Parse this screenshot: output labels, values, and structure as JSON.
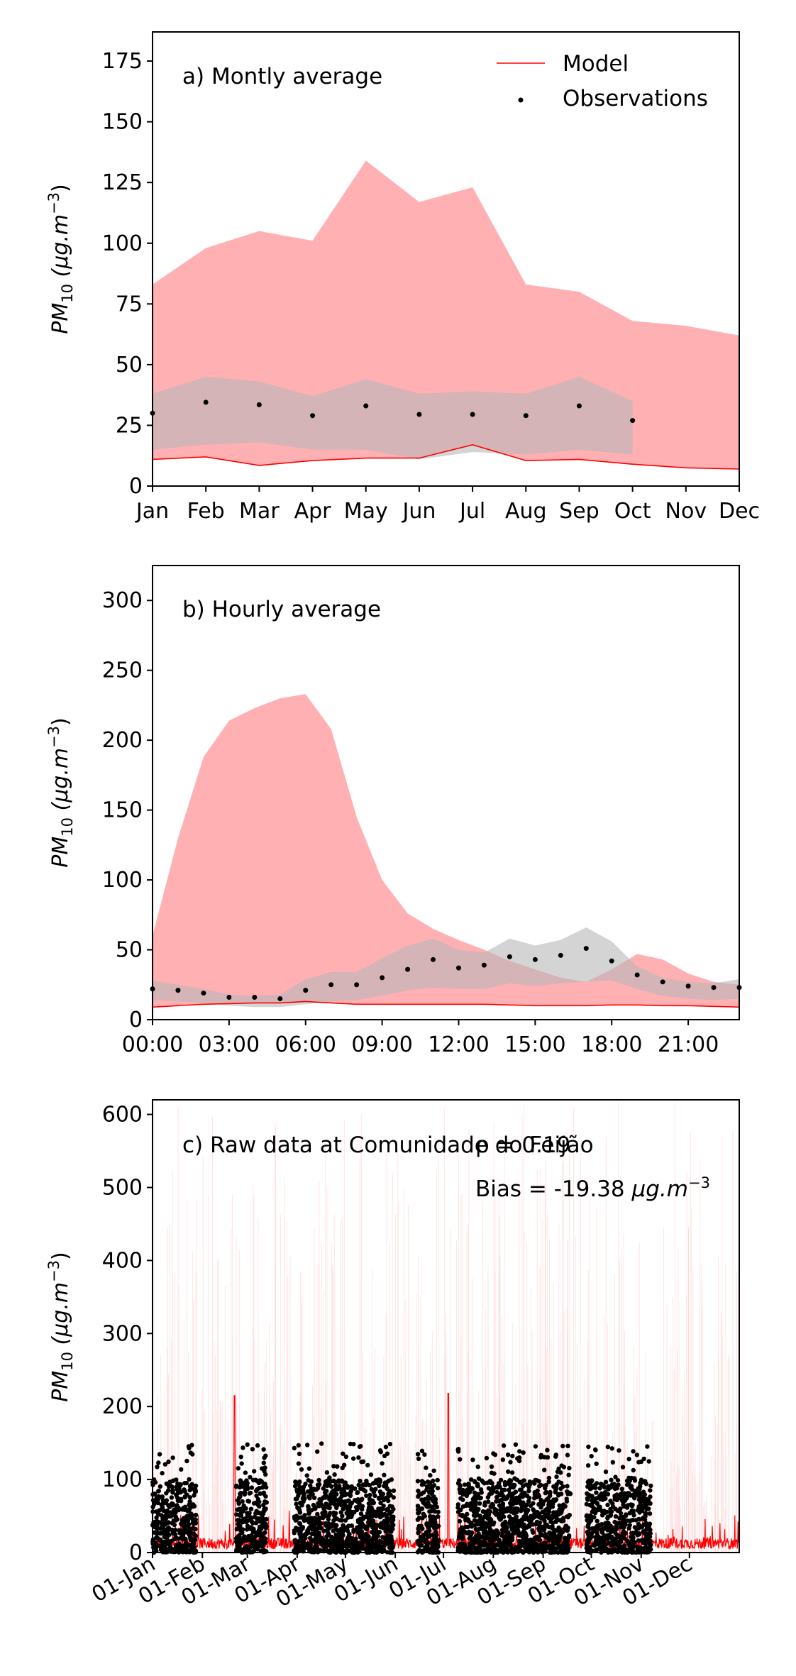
{
  "chart_data": [
    {
      "type": "area",
      "panel_label": "a) Montly average",
      "ylabel_main": "PM",
      "ylabel_sub": "10",
      "ylabel_units": "(μg.m",
      "ylabel_exp": "−3",
      "ylabel_close": ")",
      "categories": [
        "Jan",
        "Feb",
        "Mar",
        "Apr",
        "May",
        "Jun",
        "Jul",
        "Aug",
        "Sep",
        "Oct",
        "Nov",
        "Dec"
      ],
      "ylim": [
        0,
        187
      ],
      "yticks": [
        0,
        25,
        50,
        75,
        100,
        125,
        150,
        175
      ],
      "legend": {
        "placement": "top-right",
        "model_label": "Model",
        "obs_label": "Observations"
      },
      "model_band_upper": [
        83,
        98,
        105,
        101,
        134,
        117,
        123,
        83,
        80,
        68,
        66,
        62
      ],
      "model_band_lower": [
        11,
        12,
        8.5,
        10.5,
        11.5,
        11.5,
        17,
        10.5,
        11,
        9,
        7.5,
        7
      ],
      "model_line": [
        11,
        12,
        8.5,
        10.5,
        11.5,
        11.5,
        17,
        10.5,
        11,
        9,
        7.5,
        7
      ],
      "obs_band_upper": [
        38,
        45,
        43,
        37,
        44,
        38,
        39,
        38,
        45,
        35
      ],
      "obs_band_lower": [
        15,
        17,
        18,
        15,
        15,
        11,
        14,
        13,
        15,
        13
      ],
      "observations": [
        30,
        34.5,
        33.5,
        29,
        33,
        29.5,
        29.5,
        29,
        33,
        27
      ],
      "colors": {
        "model_band": "#ffb0b3",
        "model_line": "#ff0000",
        "obs_band": "#c8c8c8",
        "obs_points": "#000000"
      }
    },
    {
      "type": "area",
      "panel_label": "b) Hourly average",
      "ylabel_main": "PM",
      "ylabel_sub": "10",
      "ylabel_units": "(μg.m",
      "ylabel_exp": "−3",
      "ylabel_close": ")",
      "x": [
        0,
        1,
        2,
        3,
        4,
        5,
        6,
        7,
        8,
        9,
        10,
        11,
        12,
        13,
        14,
        15,
        16,
        17,
        18,
        19,
        20,
        21,
        22,
        23
      ],
      "xticks": [
        "00:00",
        "03:00",
        "06:00",
        "09:00",
        "12:00",
        "15:00",
        "18:00",
        "21:00"
      ],
      "xtick_hours": [
        0,
        3,
        6,
        9,
        12,
        15,
        18,
        21
      ],
      "xlim": [
        0,
        23
      ],
      "ylim": [
        0,
        325
      ],
      "yticks": [
        0,
        50,
        100,
        150,
        200,
        250,
        300
      ],
      "model_band_upper": [
        60,
        130,
        188,
        214,
        223,
        230,
        233,
        208,
        145,
        100,
        76,
        65,
        57,
        50,
        42,
        36,
        30,
        27,
        36,
        47,
        43,
        33,
        27,
        25
      ],
      "model_band_lower": [
        9,
        10,
        11,
        11.5,
        12,
        12,
        13,
        12,
        11,
        11,
        11,
        11,
        11,
        11,
        10.5,
        10,
        10,
        10,
        10.5,
        10.5,
        10,
        10,
        9.5,
        9
      ],
      "model_line": [
        9,
        10,
        11,
        11.5,
        12,
        12,
        13,
        12,
        11,
        11,
        11,
        11,
        11,
        11,
        10.5,
        10,
        10,
        10,
        10.5,
        10.5,
        10,
        10,
        9.5,
        9
      ],
      "obs_band_upper": [
        28,
        25,
        22,
        18,
        17,
        18,
        29,
        34,
        34,
        44,
        53,
        58,
        50,
        48,
        58,
        53,
        57,
        66,
        56,
        38,
        30,
        27,
        26,
        29
      ],
      "obs_band_lower": [
        14,
        13,
        12,
        10,
        9,
        9,
        11,
        13,
        14,
        17,
        21,
        23,
        22,
        22,
        26,
        24,
        26,
        27,
        28,
        22,
        17,
        15,
        14,
        15
      ],
      "observations": [
        22,
        21,
        19,
        16,
        16,
        15,
        21,
        25,
        25,
        30,
        36,
        43,
        37,
        39,
        45,
        43,
        46,
        51,
        42,
        32,
        27,
        24,
        23,
        23
      ],
      "colors": {
        "model_band": "#ffb0b3",
        "model_line": "#ff0000",
        "obs_band": "#c8c8c8",
        "obs_points": "#000000"
      }
    },
    {
      "type": "scatter",
      "panel_label": "c) Raw data at Comunidade do Feijão",
      "rho_text": "ρ = 0.19",
      "bias_text": "Bias = -19.38",
      "bias_units": "μg.m",
      "bias_exp": "−3",
      "ylabel_main": "PM",
      "ylabel_sub": "10",
      "ylabel_units": "(μg.m",
      "ylabel_exp": "−3",
      "ylabel_close": ")",
      "xticks": [
        "01-Jan",
        "01-Feb",
        "01-Mar",
        "01-Apr",
        "01-May",
        "01-Jun",
        "01-Jul",
        "01-Aug",
        "01-Sep",
        "01-Oct",
        "01-Nov",
        "01-Dec"
      ],
      "xtick_days": [
        0,
        31,
        59,
        90,
        120,
        151,
        181,
        212,
        243,
        273,
        304,
        334
      ],
      "xlim": [
        0,
        365
      ],
      "ylim": [
        0,
        620
      ],
      "yticks": [
        0,
        100,
        200,
        300,
        400,
        500,
        600
      ],
      "obs_periods_days": [
        [
          0,
          27
        ],
        [
          52,
          71
        ],
        [
          88,
          150
        ],
        [
          165,
          178
        ],
        [
          190,
          260
        ],
        [
          270,
          310
        ]
      ],
      "obs_typical_range": [
        0,
        100
      ],
      "obs_max_seen": 150,
      "model_typical_range": [
        5,
        30
      ],
      "model_peaks": [
        {
          "day": 51,
          "value": 215
        },
        {
          "day": 184,
          "value": 218
        }
      ],
      "colors": {
        "model_line": "#ff0000",
        "model_faint": "#ffd0d0",
        "obs_points": "#000000"
      }
    }
  ]
}
